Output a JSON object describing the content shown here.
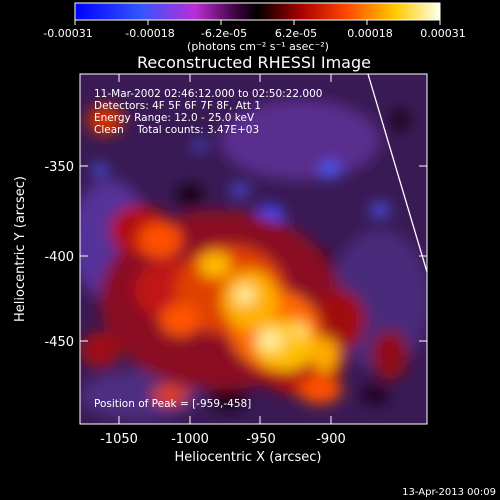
{
  "colorbar": {
    "ticks": [
      "-0.00031",
      "-0.00018",
      "-6.2e-05",
      "6.2e-05",
      "0.00018",
      "0.00031"
    ],
    "units": "(photons cm⁻² s⁻¹ asec⁻²)"
  },
  "plot": {
    "title": "Reconstructed RHESSI Image",
    "xlabel": "Heliocentric X (arcsec)",
    "ylabel": "Heliocentric Y (arcsec)",
    "xticks": [
      "-1050",
      "-1000",
      "-950",
      "-900"
    ],
    "yticks": [
      "-350",
      "-400",
      "-450"
    ],
    "annotation": {
      "line1": "11-Mar-2002 02:46:12.000 to 02:50:22.000",
      "line2": "Detectors: 4F 5F 6F 7F 8F, Att 1",
      "line3": "Energy Range: 12.0 - 25.0 keV",
      "line4": "Clean    Total counts: 3.47E+03"
    },
    "peak": "Position of Peak = [-959,-458]"
  },
  "footer": {
    "date": "13-Apr-2013 00:09"
  },
  "colors": {
    "background": "#000000",
    "text": "#ffffff"
  }
}
